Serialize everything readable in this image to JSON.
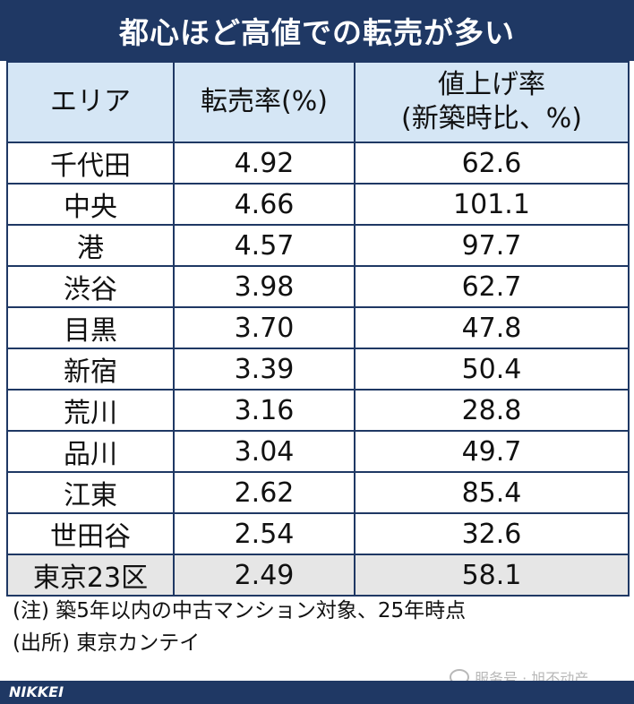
{
  "chart_data": {
    "type": "table",
    "title": "都心ほど高値での転売が多い",
    "columns": [
      "エリア",
      "転売率(%)",
      "値上げ率"
    ],
    "column3_subtitle": "(新築時比、%)",
    "rows": [
      [
        "千代田",
        "4.92",
        "62.6"
      ],
      [
        "中央",
        "4.66",
        "101.1"
      ],
      [
        "港",
        "4.57",
        "97.7"
      ],
      [
        "渋谷",
        "3.98",
        "62.7"
      ],
      [
        "目黒",
        "3.70",
        "47.8"
      ],
      [
        "新宿",
        "3.39",
        "50.4"
      ],
      [
        "荒川",
        "3.16",
        "28.8"
      ],
      [
        "品川",
        "3.04",
        "49.7"
      ],
      [
        "江東",
        "2.62",
        "85.4"
      ],
      [
        "世田谷",
        "2.54",
        "32.6"
      ],
      [
        "東京23区",
        "2.49",
        "58.1"
      ]
    ],
    "highlight_row": "東京23区"
  },
  "notes": {
    "note": "(注) 築5年以内の中古マンション対象、25年時点",
    "source": "(出所) 東京カンテイ"
  },
  "footer": {
    "logo": "NIKKEI"
  },
  "watermark": {
    "text": "服务号 · 旭不动产",
    "icon": "wechat-icon"
  },
  "colors": {
    "navy": "#1f3864",
    "header_bg": "#d5e6f5",
    "total_bg": "#e6e6e6"
  }
}
